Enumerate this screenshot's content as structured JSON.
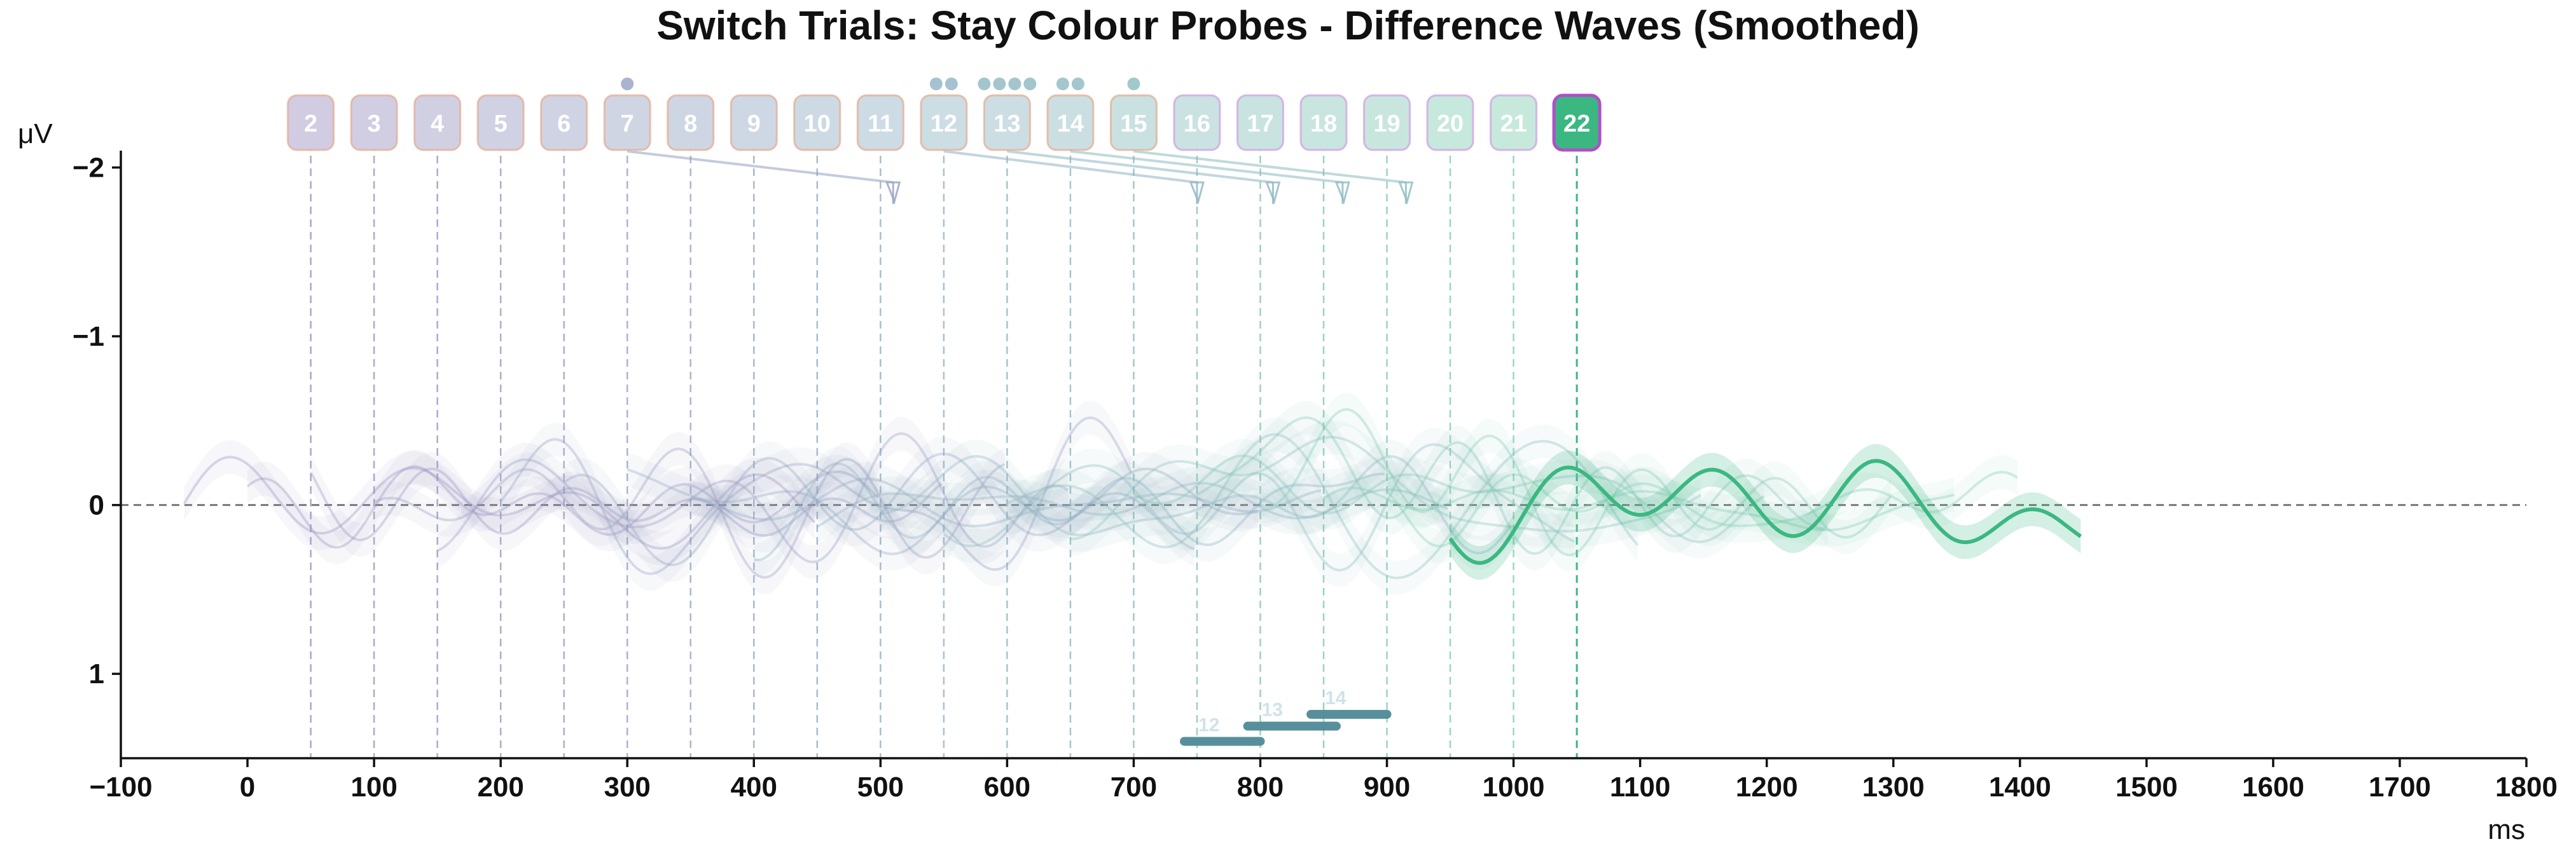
{
  "chart_data": {
    "type": "line",
    "title": "Switch Trials: Stay Colour Probes - Difference Waves (Smoothed)",
    "xlabel": "ms",
    "ylabel": "μV",
    "xlim": [
      -100,
      1800
    ],
    "ylim": [
      1.5,
      -2.1
    ],
    "y_inverted": true,
    "x_ticks": [
      -100,
      0,
      100,
      200,
      300,
      400,
      500,
      600,
      700,
      800,
      900,
      1000,
      1100,
      1200,
      1300,
      1400,
      1500,
      1600,
      1700,
      1800
    ],
    "x_tick_labels": [
      "−100",
      "0",
      "100",
      "200",
      "300",
      "400",
      "500",
      "600",
      "700",
      "800",
      "900",
      "1000",
      "1100",
      "1200",
      "1300",
      "1400",
      "1500",
      "1600",
      "1700",
      "1800"
    ],
    "y_ticks": [
      -2,
      -1,
      0,
      1
    ],
    "y_tick_labels": [
      "−2",
      "−1",
      "0",
      "1"
    ],
    "zero_line": 0,
    "grid": false,
    "colors": {
      "early": "#9b8fbf",
      "mid": "#8fb3c4",
      "late": "#7fd1b0",
      "current": "#3bb882",
      "current_border": "#b04fc7",
      "badge_border_early": "#e3a98f",
      "badge_border_late": "#cf9be0",
      "sig_bar": "#4e8a96"
    },
    "probes": [
      {
        "label": "2",
        "onset": 50,
        "t_start": -50,
        "t_end": 450
      },
      {
        "label": "3",
        "onset": 100,
        "t_start": 0,
        "t_end": 500
      },
      {
        "label": "4",
        "onset": 150,
        "t_start": 50,
        "t_end": 550
      },
      {
        "label": "5",
        "onset": 200,
        "t_start": 100,
        "t_end": 600
      },
      {
        "label": "6",
        "onset": 250,
        "t_start": 150,
        "t_end": 650
      },
      {
        "label": "7",
        "onset": 300,
        "t_start": 200,
        "t_end": 700,
        "dots": 1
      },
      {
        "label": "8",
        "onset": 350,
        "t_start": 250,
        "t_end": 750
      },
      {
        "label": "9",
        "onset": 400,
        "t_start": 300,
        "t_end": 800
      },
      {
        "label": "10",
        "onset": 450,
        "t_start": 350,
        "t_end": 850
      },
      {
        "label": "11",
        "onset": 500,
        "t_start": 400,
        "t_end": 900
      },
      {
        "label": "12",
        "onset": 550,
        "t_start": 450,
        "t_end": 950,
        "dots": 2
      },
      {
        "label": "13",
        "onset": 600,
        "t_start": 500,
        "t_end": 1000,
        "dots": 4
      },
      {
        "label": "14",
        "onset": 650,
        "t_start": 550,
        "t_end": 1050,
        "dots": 2
      },
      {
        "label": "15",
        "onset": 700,
        "t_start": 600,
        "t_end": 1100,
        "dots": 1
      },
      {
        "label": "16",
        "onset": 750,
        "t_start": 650,
        "t_end": 1150
      },
      {
        "label": "17",
        "onset": 800,
        "t_start": 700,
        "t_end": 1200
      },
      {
        "label": "18",
        "onset": 850,
        "t_start": 750,
        "t_end": 1250
      },
      {
        "label": "19",
        "onset": 900,
        "t_start": 800,
        "t_end": 1300
      },
      {
        "label": "20",
        "onset": 950,
        "t_start": 850,
        "t_end": 1350
      },
      {
        "label": "21",
        "onset": 1000,
        "t_start": 900,
        "t_end": 1400
      },
      {
        "label": "22",
        "onset": 1050,
        "t_start": 950,
        "t_end": 1450,
        "current": true
      }
    ],
    "connectors": [
      {
        "from_onset": 300,
        "to_x": 510
      },
      {
        "from_onset": 550,
        "to_x": 750
      },
      {
        "from_onset": 600,
        "to_x": 810
      },
      {
        "from_onset": 650,
        "to_x": 865
      },
      {
        "from_onset": 700,
        "to_x": 915
      }
    ],
    "significance_bars": [
      {
        "label": "12",
        "x_start": 740,
        "x_end": 800,
        "y": 1.4
      },
      {
        "label": "13",
        "x_start": 790,
        "x_end": 860,
        "y": 1.31
      },
      {
        "label": "14",
        "x_start": 840,
        "x_end": 900,
        "y": 1.24
      }
    ]
  }
}
